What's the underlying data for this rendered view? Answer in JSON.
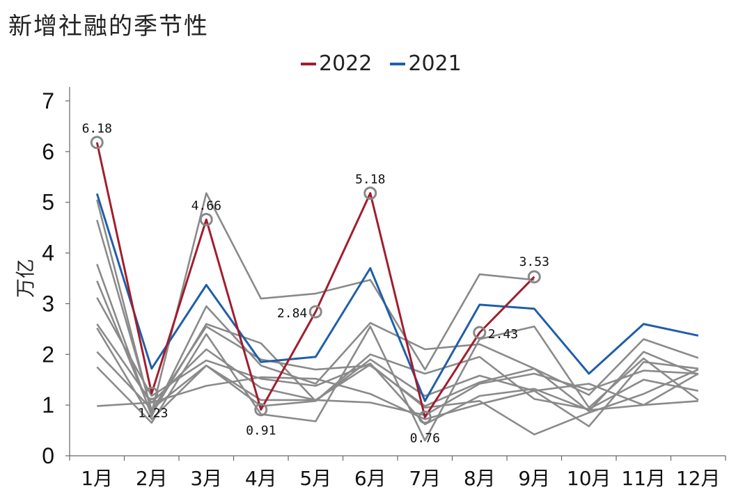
{
  "chart_data": {
    "type": "line",
    "title": "新增社融的季节性",
    "xlabel": "",
    "ylabel": "万亿",
    "ylim": [
      0,
      7
    ],
    "yticks": [
      "0",
      "1",
      "2",
      "3",
      "4",
      "5",
      "6",
      "7"
    ],
    "categories": [
      "1月",
      "2月",
      "3月",
      "4月",
      "5月",
      "6月",
      "7月",
      "8月",
      "9月",
      "10月",
      "11月",
      "12月"
    ],
    "legend": {
      "position": "top-center"
    },
    "colors": {
      "2022": "#a11d2e",
      "2021": "#1f5fa8",
      "history": "#8a8a8a"
    },
    "series": [
      {
        "name": "2022",
        "values": [
          6.18,
          1.23,
          4.66,
          0.91,
          2.84,
          5.18,
          0.76,
          2.43,
          3.53,
          null,
          null,
          null
        ]
      },
      {
        "name": "2021",
        "values": [
          5.17,
          1.72,
          3.37,
          1.85,
          1.95,
          3.7,
          1.08,
          2.98,
          2.9,
          1.62,
          2.6,
          2.37
        ]
      }
    ],
    "history_series": [
      {
        "values": [
          5.05,
          0.85,
          5.18,
          3.1,
          3.2,
          3.47,
          1.7,
          3.58,
          3.47
        ]
      },
      {
        "values": [
          4.65,
          0.9,
          2.55,
          1.9,
          1.7,
          1.78,
          0.98,
          1.45,
          1.72,
          1.2,
          2.3,
          1.93
        ]
      },
      {
        "values": [
          3.78,
          0.78,
          2.95,
          1.78,
          1.42,
          2.62,
          2.1,
          2.2,
          1.72,
          0.88,
          2.05,
          1.6
        ]
      },
      {
        "values": [
          3.45,
          0.82,
          2.6,
          2.22,
          1.08,
          1.9,
          1.18,
          1.58,
          1.28,
          0.58,
          1.85,
          1.72
        ]
      },
      {
        "values": [
          3.12,
          1.18,
          1.88,
          1.52,
          1.38,
          1.82,
          0.62,
          1.18,
          1.32,
          0.9,
          1.0,
          1.62
        ]
      },
      {
        "values": [
          2.6,
          1.05,
          2.1,
          1.34,
          1.1,
          1.8,
          0.95,
          1.08,
          0.42,
          0.85,
          1.22,
          1.7
        ]
      },
      {
        "values": [
          2.52,
          0.72,
          1.78,
          1.1,
          1.1,
          1.05,
          0.8,
          1.42,
          1.62,
          1.3,
          1.68,
          1.62
        ]
      },
      {
        "values": [
          2.05,
          0.92,
          1.78,
          0.98,
          1.08,
          2.0,
          1.62,
          1.95,
          1.12,
          0.92,
          1.5,
          1.28
        ]
      },
      {
        "values": [
          1.75,
          0.65,
          2.4,
          0.82,
          0.68,
          2.55,
          0.3,
          2.3,
          2.55,
          0.95,
          1.92,
          1.1
        ]
      },
      {
        "values": [
          0.98,
          1.05,
          1.38,
          1.55,
          1.52,
          1.22,
          0.72,
          1.02,
          1.28,
          1.42,
          1.0,
          1.08
        ]
      }
    ],
    "data_labels": [
      "6.18",
      "1.23",
      "4.66",
      "0.91",
      "2.84",
      "5.18",
      "0.76",
      "2.43",
      "3.53"
    ]
  }
}
